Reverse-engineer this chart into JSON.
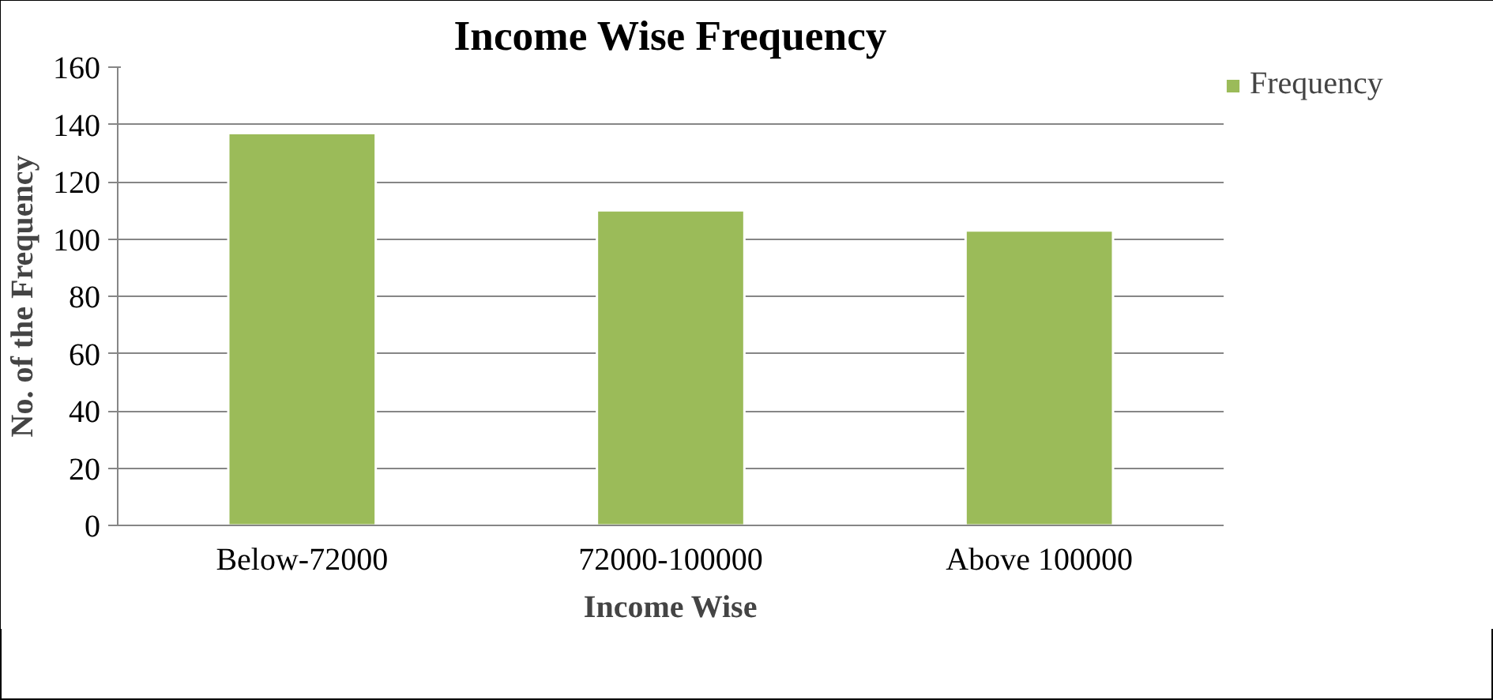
{
  "chart_data": {
    "type": "bar",
    "title": "Income Wise Frequency",
    "xlabel": "Income Wise",
    "ylabel": "No. of the Frequency",
    "categories": [
      "Below-72000",
      "72000-100000",
      "Above 100000"
    ],
    "series": [
      {
        "name": "Frequency",
        "color": "#9bbb59",
        "values": [
          137,
          110,
          103
        ]
      }
    ],
    "ylim": [
      0,
      160
    ],
    "yticks": [
      0,
      20,
      40,
      60,
      80,
      100,
      120,
      140,
      160
    ],
    "grid": "y",
    "legend": "top right"
  }
}
